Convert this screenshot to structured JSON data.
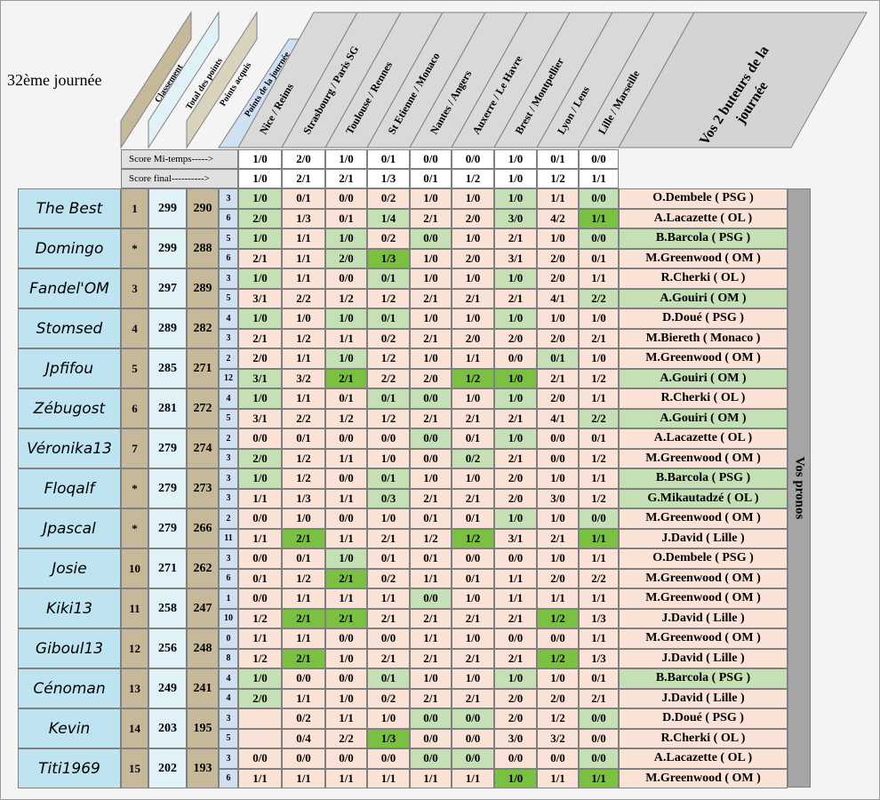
{
  "journee": "32ème journée",
  "headers": {
    "classement": "Classement",
    "total": "Total des points",
    "acquis": "Points acquis",
    "journee_pts": "Points de la journée",
    "buteurs": "Vos 2 buteurs de la journée",
    "vos_pronos": "Vos pronos"
  },
  "matches": [
    "Nice / Reims",
    "Strasbourg / Paris SG",
    "Toulouse / Rennes",
    "St Etienne / Monaco",
    "Nantes / Angers",
    "Auxerre / Le Havre",
    "Brest / Montpellier",
    "Lyon / Lens",
    "Lille / Marseille"
  ],
  "ref": {
    "mt_label": "Score Mi-temps----->",
    "final_label": "Score final---------->",
    "mt": [
      "1/0",
      "2/0",
      "1/0",
      "0/1",
      "0/0",
      "0/0",
      "1/0",
      "0/1",
      "0/0"
    ],
    "final": [
      "1/0",
      "2/1",
      "2/1",
      "1/3",
      "0/1",
      "1/2",
      "1/0",
      "1/2",
      "1/1"
    ]
  },
  "players": [
    {
      "name": "The Best",
      "rank": "1",
      "total": "299",
      "acq": "290",
      "rows": [
        {
          "pts": "3",
          "p": [
            "1/0",
            "0/1",
            "0/0",
            "0/2",
            "1/0",
            "1/0",
            "1/0",
            "1/1",
            "0/0"
          ],
          "hl": [
            "g",
            "",
            "",
            "",
            "",
            "",
            "g",
            "",
            "g"
          ],
          "but": "O.Dembele ( PSG )",
          "bh": ""
        },
        {
          "pts": "6",
          "p": [
            "2/0",
            "1/3",
            "0/1",
            "1/4",
            "2/1",
            "2/0",
            "3/0",
            "4/2",
            "1/1"
          ],
          "hl": [
            "g",
            "",
            "",
            "g",
            "",
            "",
            "g",
            "",
            "d"
          ],
          "but": "A.Lacazette ( OL )",
          "bh": ""
        }
      ]
    },
    {
      "name": "Domingo",
      "rank": "*",
      "total": "299",
      "acq": "288",
      "rows": [
        {
          "pts": "5",
          "p": [
            "1/0",
            "1/1",
            "1/0",
            "0/2",
            "0/0",
            "1/0",
            "2/1",
            "1/0",
            "0/0"
          ],
          "hl": [
            "g",
            "",
            "g",
            "",
            "g",
            "",
            "",
            "",
            "g"
          ],
          "but": "B.Barcola ( PSG )",
          "bh": "g"
        },
        {
          "pts": "6",
          "p": [
            "2/1",
            "1/1",
            "2/0",
            "1/3",
            "1/0",
            "2/0",
            "3/1",
            "2/0",
            "0/1"
          ],
          "hl": [
            "",
            "",
            "g",
            "d",
            "",
            "",
            "",
            "",
            ""
          ],
          "but": "M.Greenwood ( OM )",
          "bh": ""
        }
      ]
    },
    {
      "name": "Fandel'OM",
      "rank": "3",
      "total": "297",
      "acq": "289",
      "rows": [
        {
          "pts": "3",
          "p": [
            "1/0",
            "1/1",
            "0/0",
            "0/1",
            "1/0",
            "1/0",
            "1/0",
            "2/0",
            "1/1"
          ],
          "hl": [
            "g",
            "",
            "",
            "g",
            "",
            "",
            "g",
            "",
            ""
          ],
          "but": "R.Cherki ( OL )",
          "bh": ""
        },
        {
          "pts": "5",
          "p": [
            "3/1",
            "2/2",
            "1/2",
            "1/2",
            "2/1",
            "2/1",
            "2/1",
            "4/1",
            "2/2"
          ],
          "hl": [
            "",
            "",
            "",
            "",
            "",
            "",
            "",
            "",
            "g"
          ],
          "but": "A.Gouiri ( OM )",
          "bh": "g"
        }
      ]
    },
    {
      "name": "Stomsed",
      "rank": "4",
      "total": "289",
      "acq": "282",
      "rows": [
        {
          "pts": "4",
          "p": [
            "1/0",
            "1/0",
            "1/0",
            "0/1",
            "1/0",
            "1/0",
            "1/0",
            "1/0",
            "1/0"
          ],
          "hl": [
            "g",
            "",
            "g",
            "g",
            "",
            "",
            "g",
            "",
            ""
          ],
          "but": "D.Doué ( PSG )",
          "bh": ""
        },
        {
          "pts": "3",
          "p": [
            "2/1",
            "1/2",
            "1/1",
            "0/2",
            "2/1",
            "2/0",
            "2/0",
            "2/0",
            "2/1"
          ],
          "hl": [
            "",
            "",
            "",
            "",
            "",
            "",
            "",
            "",
            ""
          ],
          "but": "M.Biereth ( Monaco )",
          "bh": ""
        }
      ]
    },
    {
      "name": "Jpfifou",
      "rank": "5",
      "total": "285",
      "acq": "271",
      "rows": [
        {
          "pts": "2",
          "p": [
            "2/0",
            "1/1",
            "1/0",
            "1/2",
            "1/0",
            "1/1",
            "0/0",
            "0/1",
            "1/0"
          ],
          "hl": [
            "",
            "",
            "g",
            "",
            "",
            "",
            "",
            "g",
            ""
          ],
          "but": "M.Greenwood ( OM )",
          "bh": ""
        },
        {
          "pts": "12",
          "p": [
            "3/1",
            "3/2",
            "2/1",
            "2/2",
            "2/0",
            "1/2",
            "1/0",
            "2/1",
            "1/2"
          ],
          "hl": [
            "g",
            "",
            "d",
            "",
            "",
            "d",
            "d",
            "",
            ""
          ],
          "but": "A.Gouiri ( OM )",
          "bh": "g"
        }
      ]
    },
    {
      "name": "Zébugost",
      "rank": "6",
      "total": "281",
      "acq": "272",
      "rows": [
        {
          "pts": "4",
          "p": [
            "1/0",
            "1/1",
            "0/1",
            "0/1",
            "0/0",
            "1/0",
            "1/0",
            "2/0",
            "1/1"
          ],
          "hl": [
            "g",
            "",
            "",
            "g",
            "g",
            "",
            "g",
            "",
            ""
          ],
          "but": "R.Cherki ( OL )",
          "bh": ""
        },
        {
          "pts": "5",
          "p": [
            "3/1",
            "2/2",
            "1/2",
            "1/2",
            "2/1",
            "2/1",
            "2/1",
            "4/1",
            "2/2"
          ],
          "hl": [
            "",
            "",
            "",
            "",
            "",
            "",
            "",
            "",
            "g"
          ],
          "but": "A.Gouiri ( OM )",
          "bh": "g"
        }
      ]
    },
    {
      "name": "Véronika13",
      "rank": "7",
      "total": "279",
      "acq": "274",
      "rows": [
        {
          "pts": "2",
          "p": [
            "0/0",
            "0/1",
            "0/0",
            "0/0",
            "0/0",
            "0/1",
            "1/0",
            "0/0",
            "0/1"
          ],
          "hl": [
            "",
            "",
            "",
            "",
            "g",
            "",
            "g",
            "",
            ""
          ],
          "but": "A.Lacazette ( OL )",
          "bh": ""
        },
        {
          "pts": "3",
          "p": [
            "2/0",
            "1/2",
            "1/1",
            "1/0",
            "0/0",
            "0/2",
            "2/1",
            "0/0",
            "1/2"
          ],
          "hl": [
            "g",
            "",
            "",
            "",
            "",
            "g",
            "",
            "",
            ""
          ],
          "but": "M.Greenwood ( OM )",
          "bh": ""
        }
      ]
    },
    {
      "name": "Floqalf",
      "rank": "*",
      "total": "279",
      "acq": "273",
      "rows": [
        {
          "pts": "3",
          "p": [
            "1/0",
            "1/2",
            "0/0",
            "0/1",
            "1/0",
            "1/0",
            "2/0",
            "1/0",
            "1/1"
          ],
          "hl": [
            "g",
            "",
            "",
            "g",
            "",
            "",
            "",
            "",
            ""
          ],
          "but": "B.Barcola ( PSG )",
          "bh": "g"
        },
        {
          "pts": "3",
          "p": [
            "1/1",
            "1/3",
            "1/1",
            "0/3",
            "2/1",
            "2/1",
            "2/0",
            "3/0",
            "1/2"
          ],
          "hl": [
            "",
            "",
            "",
            "g",
            "",
            "",
            "",
            "",
            ""
          ],
          "but": "G.Mikautadzé ( OL )",
          "bh": "g"
        }
      ]
    },
    {
      "name": "Jpascal",
      "rank": "*",
      "total": "279",
      "acq": "266",
      "rows": [
        {
          "pts": "2",
          "p": [
            "0/0",
            "1/0",
            "0/0",
            "1/0",
            "0/1",
            "0/1",
            "1/0",
            "1/0",
            "0/0"
          ],
          "hl": [
            "",
            "",
            "",
            "",
            "",
            "",
            "g",
            "",
            "g"
          ],
          "but": "M.Greenwood ( OM )",
          "bh": ""
        },
        {
          "pts": "11",
          "p": [
            "1/1",
            "2/1",
            "1/1",
            "2/1",
            "1/2",
            "1/2",
            "3/1",
            "2/1",
            "1/1"
          ],
          "hl": [
            "",
            "d",
            "",
            "",
            "",
            "d",
            "",
            "",
            "d"
          ],
          "but": "J.David ( Lille )",
          "bh": ""
        }
      ]
    },
    {
      "name": "Josie",
      "rank": "10",
      "total": "271",
      "acq": "262",
      "rows": [
        {
          "pts": "3",
          "p": [
            "0/0",
            "0/1",
            "1/0",
            "0/1",
            "0/1",
            "0/0",
            "0/0",
            "1/0",
            "1/1"
          ],
          "hl": [
            "",
            "",
            "g",
            "",
            "",
            "",
            "",
            "",
            ""
          ],
          "but": "O.Dembele ( PSG )",
          "bh": ""
        },
        {
          "pts": "6",
          "p": [
            "0/1",
            "1/2",
            "2/1",
            "0/2",
            "1/1",
            "0/1",
            "1/1",
            "2/0",
            "2/2"
          ],
          "hl": [
            "",
            "",
            "d",
            "",
            "",
            "",
            "",
            "",
            ""
          ],
          "but": "M.Greenwood ( OM )",
          "bh": ""
        }
      ]
    },
    {
      "name": "Kiki13",
      "rank": "11",
      "total": "258",
      "acq": "247",
      "rows": [
        {
          "pts": "1",
          "p": [
            "0/0",
            "1/1",
            "1/1",
            "1/1",
            "0/0",
            "1/0",
            "1/1",
            "1/1",
            "1/1"
          ],
          "hl": [
            "",
            "",
            "",
            "",
            "g",
            "",
            "",
            "",
            ""
          ],
          "but": "M.Greenwood ( OM )",
          "bh": ""
        },
        {
          "pts": "10",
          "p": [
            "1/2",
            "2/1",
            "2/1",
            "2/1",
            "2/1",
            "2/1",
            "2/1",
            "1/2",
            "1/3"
          ],
          "hl": [
            "",
            "d",
            "d",
            "",
            "",
            "",
            "",
            "d",
            ""
          ],
          "but": "J.David ( Lille )",
          "bh": ""
        }
      ]
    },
    {
      "name": "Giboul13",
      "rank": "12",
      "total": "256",
      "acq": "248",
      "rows": [
        {
          "pts": "0",
          "p": [
            "1/1",
            "1/1",
            "0/0",
            "0/0",
            "1/1",
            "1/0",
            "0/0",
            "0/0",
            "1/1"
          ],
          "hl": [
            "",
            "",
            "",
            "",
            "",
            "",
            "",
            "",
            ""
          ],
          "but": "M.Greenwood ( OM )",
          "bh": ""
        },
        {
          "pts": "8",
          "p": [
            "1/2",
            "2/1",
            "1/0",
            "2/1",
            "2/1",
            "2/1",
            "2/1",
            "1/2",
            "1/3"
          ],
          "hl": [
            "",
            "d",
            "",
            "",
            "",
            "",
            "",
            "d",
            ""
          ],
          "but": "J.David ( Lille )",
          "bh": ""
        }
      ]
    },
    {
      "name": "Cénoman",
      "rank": "13",
      "total": "249",
      "acq": "241",
      "rows": [
        {
          "pts": "4",
          "p": [
            "1/0",
            "0/0",
            "0/0",
            "0/1",
            "1/0",
            "1/0",
            "1/0",
            "1/0",
            "0/1"
          ],
          "hl": [
            "g",
            "",
            "",
            "g",
            "",
            "",
            "g",
            "",
            ""
          ],
          "but": "B.Barcola ( PSG )",
          "bh": "g"
        },
        {
          "pts": "4",
          "p": [
            "2/0",
            "1/1",
            "1/0",
            "0/2",
            "2/1",
            "2/1",
            "2/0",
            "2/0",
            "2/1"
          ],
          "hl": [
            "g",
            "",
            "",
            "",
            "",
            "",
            "",
            "",
            ""
          ],
          "but": "J.David ( Lille )",
          "bh": ""
        }
      ]
    },
    {
      "name": "Kevin",
      "rank": "14",
      "total": "203",
      "acq": "195",
      "rows": [
        {
          "pts": "3",
          "p": [
            "",
            "0/2",
            "1/1",
            "1/0",
            "0/0",
            "0/0",
            "2/0",
            "1/2",
            "0/0"
          ],
          "hl": [
            "",
            "",
            "",
            "",
            "g",
            "g",
            "",
            "",
            "g"
          ],
          "but": "D.Doué ( PSG )",
          "bh": ""
        },
        {
          "pts": "5",
          "p": [
            "",
            "0/4",
            "2/2",
            "1/3",
            "0/0",
            "0/0",
            "3/0",
            "3/2",
            "0/0"
          ],
          "hl": [
            "",
            "",
            "",
            "d",
            "",
            "",
            "",
            "",
            ""
          ],
          "but": "R.Cherki ( OL )",
          "bh": ""
        }
      ]
    },
    {
      "name": "Titi1969",
      "rank": "15",
      "total": "202",
      "acq": "193",
      "rows": [
        {
          "pts": "3",
          "p": [
            "0/0",
            "0/0",
            "0/0",
            "0/0",
            "0/0",
            "0/0",
            "0/0",
            "0/0",
            "0/0"
          ],
          "hl": [
            "",
            "",
            "",
            "",
            "g",
            "g",
            "",
            "",
            "g"
          ],
          "but": "A.Lacazette ( OL )",
          "bh": ""
        },
        {
          "pts": "6",
          "p": [
            "1/1",
            "1/1",
            "1/1",
            "1/1",
            "1/1",
            "1/1",
            "1/0",
            "1/1",
            "1/1"
          ],
          "hl": [
            "",
            "",
            "",
            "",
            "",
            "",
            "d",
            "",
            "d"
          ],
          "but": "M.Greenwood ( OM )",
          "bh": ""
        }
      ]
    }
  ]
}
